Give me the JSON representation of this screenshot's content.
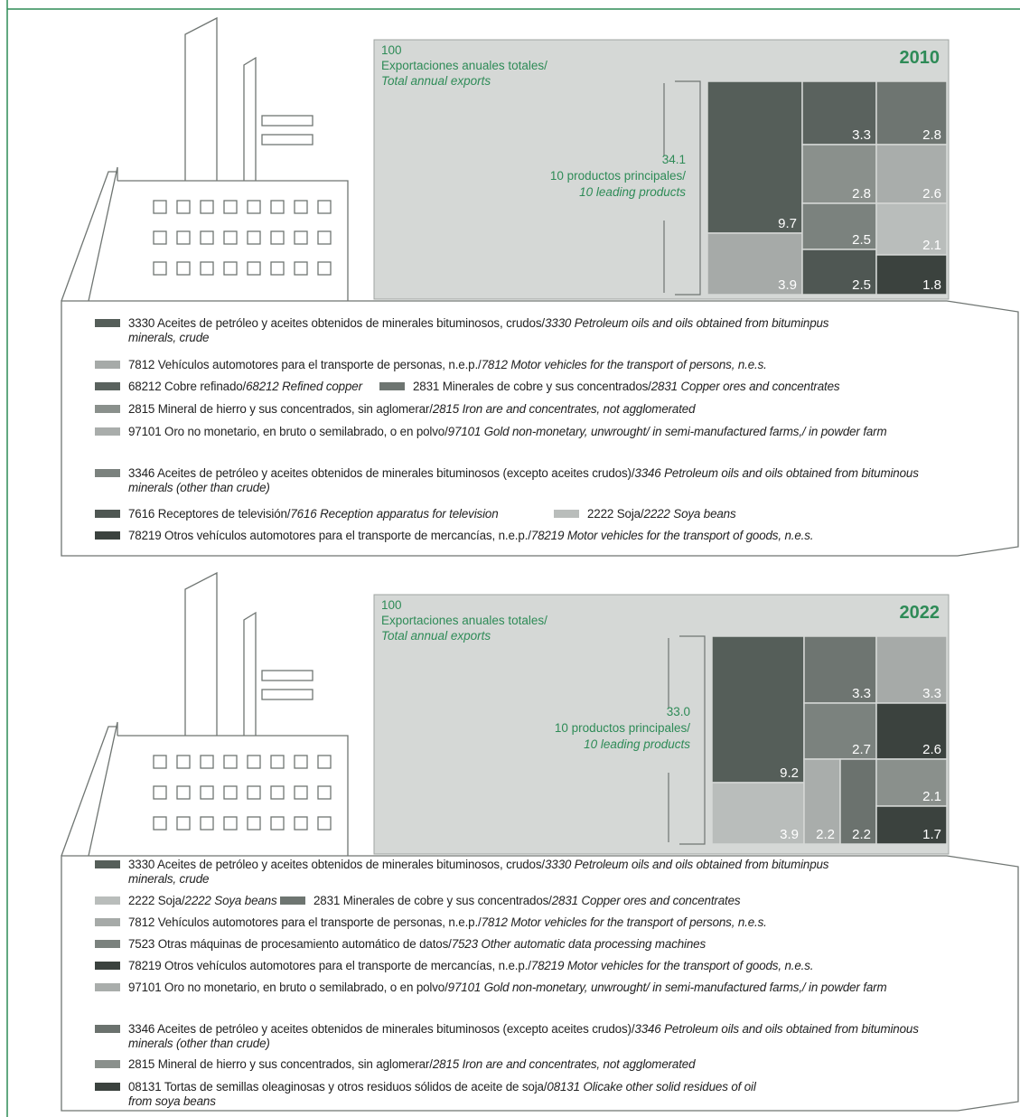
{
  "chart_data": [
    {
      "type": "treemap",
      "title": "2010",
      "total": 100,
      "total_label": "Exportaciones anuales totales/",
      "total_label_en": "Total annual exports",
      "subtotal": {
        "value": 34.1,
        "label": "34.1"
      },
      "subtotal_label": "10 productos principales/",
      "subtotal_label_en": "10 leading products",
      "series": [
        {
          "name": "3330 Aceites de petróleo y aceites obtenidos de minerales bituminosos, crudos/",
          "name_en": "3330 Petroleum oils and oils obtained from bituminpus minerals, crude",
          "color": "#555e59",
          "value": 9.7
        },
        {
          "name": "7812 Vehículos automotores para el transporte de personas, n.e.p./",
          "name_en": "7812 Motor vehicles for the transport of persons, n.e.s.",
          "color": "#a6aaa8",
          "value": 3.9
        },
        {
          "name": "68212 Cobre refinado/",
          "name_en": "68212 Refined copper",
          "color": "#5a625e",
          "value": 3.3
        },
        {
          "name": "2831 Minerales de cobre y sus concentrados/",
          "name_en": "2831 Copper ores and concentrates",
          "color": "#6e7571",
          "value": 2.8
        },
        {
          "name": "2815 Mineral de hierro y sus concentrados, sin aglomerar/",
          "name_en": "2815 Iron are and concentrates, not agglomerated",
          "color": "#8a908c",
          "value": 2.8
        },
        {
          "name": "97101 Oro no monetario, en bruto o semilabrado, o en polvo/",
          "name_en": "97101 Gold non-monetary, unwrought/ in semi-manufactured farms,/ in powder farm",
          "color": "#a9adab",
          "value": 2.6
        },
        {
          "name": "3346 Aceites de petróleo y aceites obtenidos de minerales bituminosos (excepto aceites crudos)/",
          "name_en": "3346 Petroleum oils and oils obtained from bituminous minerals (other than crude)",
          "color": "#7b827e",
          "value": 2.5
        },
        {
          "name": "7616 Receptores de televisión/",
          "name_en": "7616 Reception apparatus for television",
          "color": "#4f5753",
          "value": 2.5
        },
        {
          "name": "2222 Soja/",
          "name_en": "2222 Soya beans",
          "color": "#b9bdbb",
          "value": 2.1
        },
        {
          "name": "78219 Otros vehículos automotores para el transporte de mercancías, n.e.p./",
          "name_en": "78219 Motor vehicles for the transport of goods, n.e.s.",
          "color": "#3b423e",
          "value": 1.8
        }
      ]
    },
    {
      "type": "treemap",
      "title": "2022",
      "total": 100,
      "total_label": "Exportaciones anuales totales/",
      "total_label_en": "Total annual exports",
      "subtotal": {
        "value": 33,
        "label": "33.0"
      },
      "subtotal_label": "10 productos principales/",
      "subtotal_label_en": "10 leading products",
      "series": [
        {
          "name": "3330 Aceites de petróleo y aceites obtenidos de minerales bituminosos, crudos/",
          "name_en": "3330 Petroleum oils and oils obtained from bituminpus minerals, crude",
          "color": "#555e59",
          "value": 9.2
        },
        {
          "name": "2222 Soja/",
          "name_en": "2222 Soya beans",
          "color": "#b9bdbb",
          "value": 3.9
        },
        {
          "name": "2831 Minerales de cobre y sus concentrados/",
          "name_en": "2831 Copper ores and concentrates",
          "color": "#6e7571",
          "value": 3.3
        },
        {
          "name": "7812 Vehículos automotores para el transporte de personas, n.e.p./",
          "name_en": "7812 Motor vehicles for the transport of persons, n.e.s.",
          "color": "#a6aaa8",
          "value": 3.3
        },
        {
          "name": "7523 Otras máquinas de procesamiento automático de datos/",
          "name_en": "7523 Other automatic data processing machines",
          "color": "#7b827e",
          "value": 2.7
        },
        {
          "name": "78219 Otros vehículos automotores para el transporte de mercancías, n.e.p./",
          "name_en": "78219 Motor vehicles for the transport of goods, n.e.s.",
          "color": "#3b423e",
          "value": 2.6
        },
        {
          "name": "97101 Oro no monetario, en bruto o semilabrado, o en polvo/",
          "name_en": "97101 Gold non-monetary, unwrought/ in semi-manufactured farms,/ in powder farm",
          "color": "#a9adab",
          "value": 2.2
        },
        {
          "name": "3346 Aceites de petróleo y aceites obtenidos de minerales bituminosos (excepto aceites crudos)/",
          "name_en": "3346 Petroleum oils and oils obtained from bituminous minerals (other than crude)",
          "color": "#6b726e",
          "value": 2.2
        },
        {
          "name": "2815 Mineral de hierro y sus concentrados, sin aglomerar/",
          "name_en": "2815 Iron are and concentrates, not agglomerated",
          "color": "#8a908c",
          "value": 2.1
        },
        {
          "name": "08131 Tortas de semillas oleaginosas y otros residuos sólidos de aceite de soja/",
          "name_en": "08131 Olicake other solid residues of oil from soya beans",
          "color": "#3b423e",
          "value": 1.7
        }
      ]
    }
  ]
}
